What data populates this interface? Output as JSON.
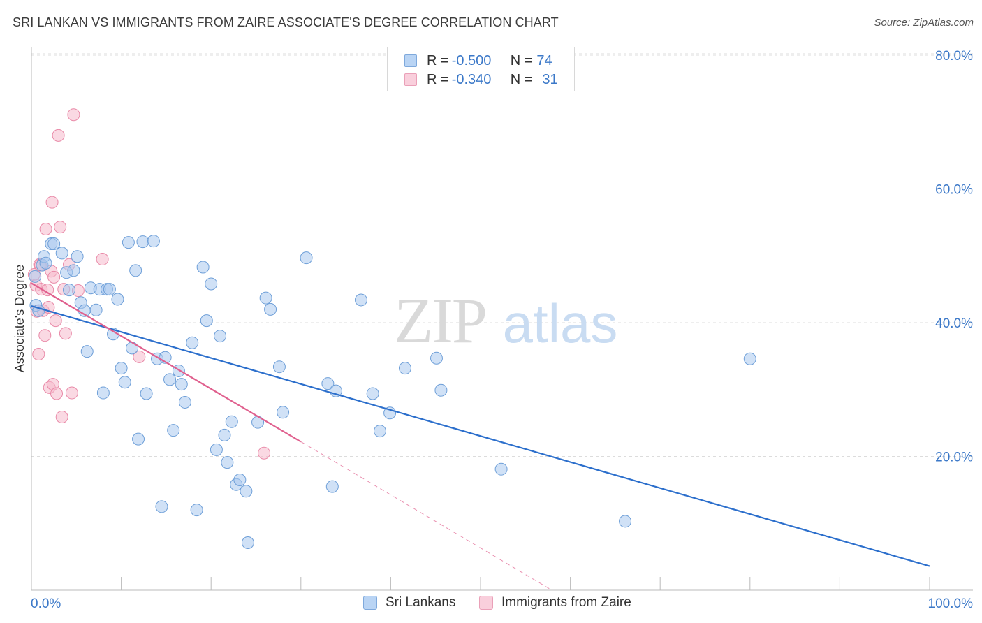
{
  "header": {
    "title": "SRI LANKAN VS IMMIGRANTS FROM ZAIRE ASSOCIATE'S DEGREE CORRELATION CHART",
    "source": "Source: ZipAtlas.com"
  },
  "legend": {
    "rows": [
      {
        "r_label": "R = ",
        "r_value": "-0.500",
        "n_label": "N = ",
        "n_value": "74"
      },
      {
        "r_label": "R = ",
        "r_value": "-0.340",
        "n_label": "N = ",
        "n_value": "31"
      }
    ]
  },
  "bottom_legend": {
    "series1": "Sri Lankans",
    "series2": "Immigrants from Zaire"
  },
  "watermark": {
    "zip": "ZIP",
    "atlas": "atlas"
  },
  "colors": {
    "blue_fill": "#a9c8ef",
    "blue_stroke": "#6e9fd8",
    "blue_line": "#2c6fcc",
    "pink_fill": "#f6b9cc",
    "pink_stroke": "#e98aa8",
    "pink_line": "#e0608e",
    "axis_text": "#3b78c8",
    "grid": "#dcdcdc"
  },
  "chart_data": {
    "type": "scatter",
    "title": "SRI LANKAN VS IMMIGRANTS FROM ZAIRE ASSOCIATE'S DEGREE CORRELATION CHART",
    "xlabel": "",
    "ylabel": "Associate's Degree",
    "xlim": [
      0,
      100
    ],
    "ylim": [
      0,
      80
    ],
    "x_tick_labels": [
      "0.0%",
      "100.0%"
    ],
    "y_ticks": [
      20,
      40,
      60,
      80
    ],
    "y_tick_labels": [
      "20.0%",
      "40.0%",
      "60.0%",
      "80.0%"
    ],
    "grid": "horizontal dashed",
    "legend_position": "top-center",
    "series": [
      {
        "name": "Sri Lankans",
        "R": -0.5,
        "N": 74,
        "trend": {
          "x": [
            0,
            100
          ],
          "y": [
            42.5,
            3.6
          ]
        },
        "points": [
          [
            0.4,
            46.9
          ],
          [
            0.5,
            42.6
          ],
          [
            0.8,
            41.8
          ],
          [
            1.2,
            48.6
          ],
          [
            1.4,
            49.9
          ],
          [
            1.6,
            48.9
          ],
          [
            2.2,
            51.8
          ],
          [
            2.5,
            51.8
          ],
          [
            3.4,
            50.4
          ],
          [
            3.9,
            47.5
          ],
          [
            4.2,
            44.9
          ],
          [
            4.7,
            47.8
          ],
          [
            5.1,
            49.9
          ],
          [
            5.5,
            43.0
          ],
          [
            5.9,
            41.8
          ],
          [
            6.2,
            35.7
          ],
          [
            6.6,
            45.2
          ],
          [
            7.2,
            41.9
          ],
          [
            7.6,
            45.0
          ],
          [
            8.0,
            29.5
          ],
          [
            8.4,
            45.0
          ],
          [
            8.7,
            45.0
          ],
          [
            9.1,
            38.3
          ],
          [
            9.6,
            43.5
          ],
          [
            10.0,
            33.2
          ],
          [
            10.4,
            31.1
          ],
          [
            10.8,
            52.0
          ],
          [
            11.2,
            36.2
          ],
          [
            11.6,
            47.8
          ],
          [
            11.9,
            22.6
          ],
          [
            12.4,
            52.1
          ],
          [
            12.8,
            29.4
          ],
          [
            13.6,
            52.2
          ],
          [
            14.0,
            34.6
          ],
          [
            14.5,
            12.5
          ],
          [
            14.9,
            34.8
          ],
          [
            15.4,
            31.5
          ],
          [
            15.8,
            23.9
          ],
          [
            16.4,
            32.8
          ],
          [
            16.7,
            30.8
          ],
          [
            17.1,
            28.1
          ],
          [
            17.9,
            37.0
          ],
          [
            18.4,
            12.0
          ],
          [
            19.1,
            48.3
          ],
          [
            19.5,
            40.3
          ],
          [
            20.0,
            45.8
          ],
          [
            20.6,
            21.0
          ],
          [
            21.0,
            38.0
          ],
          [
            21.5,
            23.2
          ],
          [
            21.8,
            19.1
          ],
          [
            22.3,
            25.2
          ],
          [
            22.8,
            15.8
          ],
          [
            23.2,
            16.5
          ],
          [
            23.9,
            14.8
          ],
          [
            24.1,
            7.1
          ],
          [
            25.2,
            25.1
          ],
          [
            26.1,
            43.7
          ],
          [
            26.6,
            42.0
          ],
          [
            27.6,
            33.4
          ],
          [
            28.0,
            26.6
          ],
          [
            30.6,
            49.7
          ],
          [
            33.0,
            30.9
          ],
          [
            33.5,
            15.5
          ],
          [
            33.9,
            29.8
          ],
          [
            36.7,
            43.4
          ],
          [
            38.0,
            29.4
          ],
          [
            38.8,
            23.8
          ],
          [
            39.9,
            26.5
          ],
          [
            41.6,
            33.2
          ],
          [
            45.1,
            34.7
          ],
          [
            45.6,
            29.9
          ],
          [
            52.3,
            18.1
          ],
          [
            66.1,
            10.3
          ],
          [
            80.0,
            34.6
          ]
        ]
      },
      {
        "name": "Immigrants from Zaire",
        "R": -0.34,
        "N": 31,
        "trend": {
          "x": [
            0,
            30
          ],
          "y": [
            45.9,
            22.2
          ]
        },
        "trend_extension": {
          "x": [
            30,
            64
          ],
          "y": [
            22.2,
            -4.8
          ]
        },
        "points": [
          [
            0.3,
            47.2
          ],
          [
            0.5,
            45.6
          ],
          [
            0.6,
            41.7
          ],
          [
            0.8,
            35.3
          ],
          [
            0.9,
            48.7
          ],
          [
            1.1,
            45.0
          ],
          [
            1.3,
            41.8
          ],
          [
            1.5,
            38.1
          ],
          [
            1.6,
            54.0
          ],
          [
            1.8,
            44.9
          ],
          [
            1.9,
            42.3
          ],
          [
            2.0,
            30.3
          ],
          [
            2.2,
            47.7
          ],
          [
            2.3,
            58.0
          ],
          [
            2.4,
            30.8
          ],
          [
            2.5,
            46.8
          ],
          [
            2.7,
            40.3
          ],
          [
            2.8,
            29.4
          ],
          [
            3.0,
            68.0
          ],
          [
            3.2,
            54.3
          ],
          [
            3.4,
            25.9
          ],
          [
            3.6,
            45.0
          ],
          [
            3.8,
            38.4
          ],
          [
            4.2,
            48.7
          ],
          [
            4.5,
            29.5
          ],
          [
            4.7,
            71.1
          ],
          [
            5.2,
            44.8
          ],
          [
            7.9,
            49.5
          ],
          [
            12.0,
            34.9
          ],
          [
            25.9,
            20.5
          ],
          [
            1.0,
            48.6
          ]
        ]
      }
    ]
  }
}
